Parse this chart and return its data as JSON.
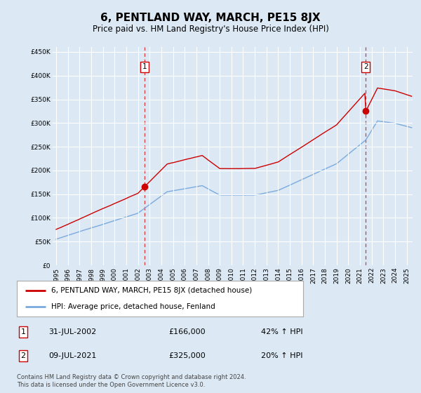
{
  "title": "6, PENTLAND WAY, MARCH, PE15 8JX",
  "subtitle": "Price paid vs. HM Land Registry's House Price Index (HPI)",
  "background_color": "#dce9f5",
  "plot_bg_color": "#dce9f5",
  "red_line_label": "6, PENTLAND WAY, MARCH, PE15 8JX (detached house)",
  "blue_line_label": "HPI: Average price, detached house, Fenland",
  "annotation1_date": "31-JUL-2002",
  "annotation1_price": "£166,000",
  "annotation1_hpi": "42% ↑ HPI",
  "annotation2_date": "09-JUL-2021",
  "annotation2_price": "£325,000",
  "annotation2_hpi": "20% ↑ HPI",
  "footer": "Contains HM Land Registry data © Crown copyright and database right 2024.\nThis data is licensed under the Open Government Licence v3.0.",
  "ylim": [
    0,
    460000
  ],
  "yticks": [
    0,
    50000,
    100000,
    150000,
    200000,
    250000,
    300000,
    350000,
    400000,
    450000
  ],
  "red_color": "#cc0000",
  "blue_color": "#7aaadd",
  "dashed_color": "#cc0000",
  "purchase1_year": 2002.583,
  "purchase1_price": 166000,
  "purchase2_year": 2021.5,
  "purchase2_price": 325000
}
